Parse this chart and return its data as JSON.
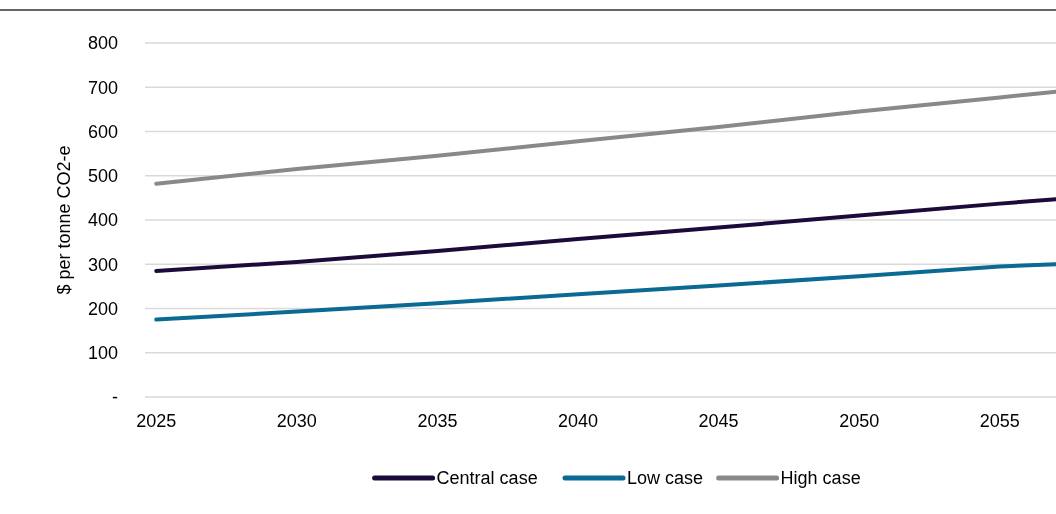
{
  "chart_data": {
    "type": "line",
    "ylabel": "$ per tonne CO2-e",
    "x": [
      2025,
      2030,
      2035,
      2040,
      2045,
      2050,
      2055,
      2057
    ],
    "xlim": [
      2024.6,
      2057
    ],
    "xticks": [
      2025,
      2030,
      2035,
      2040,
      2045,
      2050,
      2055
    ],
    "ylim": [
      0,
      800
    ],
    "yticks": [
      {
        "value": 0,
        "label": "-"
      },
      100,
      200,
      300,
      400,
      500,
      600,
      700,
      800
    ],
    "grid": "y",
    "legend": "bottom",
    "marker": "none",
    "line_style": "solid",
    "series": [
      {
        "name": "Central case",
        "color": "#1c0a3a",
        "values": [
          285,
          305,
          330,
          357,
          383,
          410,
          437,
          447
        ]
      },
      {
        "name": "Low case",
        "color": "#0a6a94",
        "values": [
          175,
          193,
          212,
          232,
          252,
          273,
          295,
          300
        ]
      },
      {
        "name": "High case",
        "color": "#898989",
        "values": [
          482,
          515,
          545,
          578,
          610,
          645,
          677,
          690
        ]
      }
    ]
  }
}
